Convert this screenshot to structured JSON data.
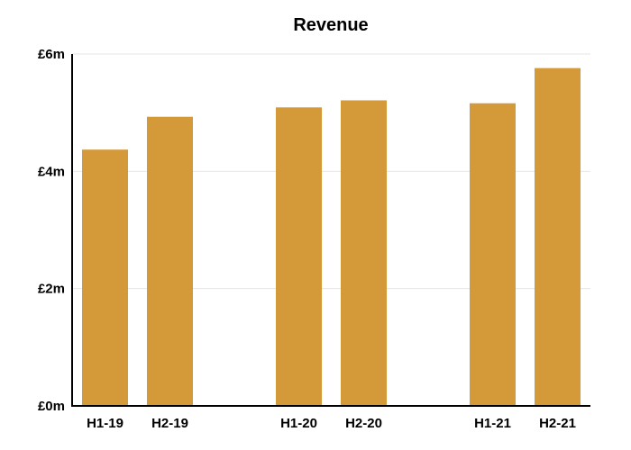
{
  "chart_data": {
    "type": "bar",
    "title": "Revenue",
    "xlabel": "",
    "ylabel": "",
    "categories": [
      "H1-19",
      "H2-19",
      "H1-20",
      "H2-20",
      "H1-21",
      "H2-21"
    ],
    "values": [
      4.37,
      4.93,
      5.09,
      5.21,
      5.16,
      5.76
    ],
    "unit": "£m",
    "ylim": [
      0,
      6
    ],
    "yticks": [
      0,
      2,
      4,
      6
    ],
    "ytick_labels": [
      "£0m",
      "£2m",
      "£4m",
      "£6m"
    ],
    "grid": true,
    "bar_color": "#D49A3A",
    "category_groups": [
      [
        0,
        1
      ],
      [
        2,
        3
      ],
      [
        4,
        5
      ]
    ],
    "legend": "none"
  }
}
